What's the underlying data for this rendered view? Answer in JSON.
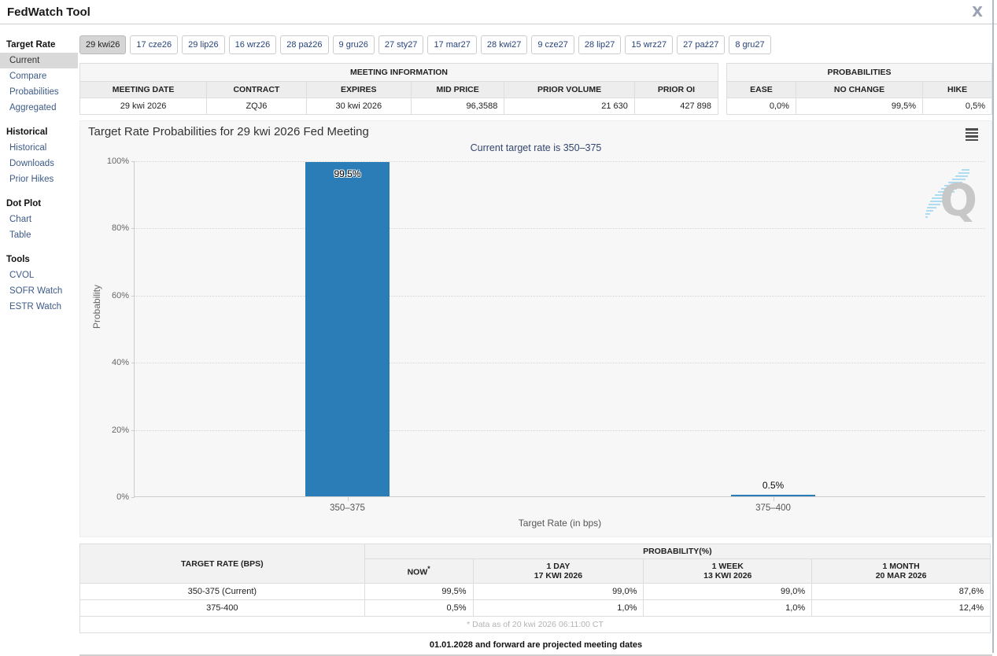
{
  "app": {
    "title": "FedWatch Tool",
    "close": "X"
  },
  "sidebar": {
    "sections": [
      {
        "header": "Target Rate",
        "items": [
          {
            "label": "Current",
            "selected": true
          },
          {
            "label": "Compare",
            "selected": false
          },
          {
            "label": "Probabilities",
            "selected": false
          },
          {
            "label": "Aggregated",
            "selected": false
          }
        ]
      },
      {
        "header": "Historical",
        "items": [
          {
            "label": "Historical",
            "selected": false
          },
          {
            "label": "Downloads",
            "selected": false
          },
          {
            "label": "Prior Hikes",
            "selected": false
          }
        ]
      },
      {
        "header": "Dot Plot",
        "items": [
          {
            "label": "Chart",
            "selected": false
          },
          {
            "label": "Table",
            "selected": false
          }
        ]
      },
      {
        "header": "Tools",
        "items": [
          {
            "label": "CVOL",
            "selected": false
          },
          {
            "label": "SOFR Watch",
            "selected": false
          },
          {
            "label": "ESTR Watch",
            "selected": false
          }
        ]
      }
    ]
  },
  "tabs": {
    "selected": "29 kwi26",
    "items": [
      "29 kwi26",
      "17 cze26",
      "29 lip26",
      "16 wrz26",
      "28 paź26",
      "9 gru26",
      "27 sty27",
      "17 mar27",
      "28 kwi27",
      "9 cze27",
      "28 lip27",
      "15 wrz27",
      "27 paź27",
      "8 gru27"
    ]
  },
  "meeting_information": {
    "title": "MEETING INFORMATION",
    "columns": [
      "MEETING DATE",
      "CONTRACT",
      "EXPIRES",
      "MID PRICE",
      "PRIOR VOLUME",
      "PRIOR OI"
    ],
    "values": [
      "29 kwi 2026",
      "ZQJ6",
      "30 kwi 2026",
      "96,3588",
      "21 630",
      "427 898"
    ]
  },
  "probabilities_panel": {
    "title": "PROBABILITIES",
    "columns": [
      "EASE",
      "NO CHANGE",
      "HIKE"
    ],
    "values": [
      "0,0%",
      "99,5%",
      "0,5%"
    ]
  },
  "chart_data": {
    "type": "bar",
    "title": "Target Rate Probabilities for 29 kwi 2026 Fed Meeting",
    "subtitle": "Current target rate is 350–375",
    "categories": [
      "350–375",
      "375–400"
    ],
    "values": [
      99.5,
      0.5
    ],
    "bar_labels": [
      "99.5%",
      "0.5%"
    ],
    "xlabel": "Target Rate (in bps)",
    "ylabel": "Probability",
    "ylim": [
      0,
      100
    ],
    "ytick_labels": [
      "0%",
      "20%",
      "40%",
      "60%",
      "80%",
      "100%"
    ],
    "grid": "dotted horizontal",
    "legend": "none",
    "bar_color": "#2b7db8"
  },
  "bottom_table": {
    "row_header": "TARGET RATE (BPS)",
    "group_header": "PROBABILITY(%)",
    "columns": [
      [
        "NOW *"
      ],
      [
        "1 DAY",
        "17 KWI 2026"
      ],
      [
        "1 WEEK",
        "13 KWI 2026"
      ],
      [
        "1 MONTH",
        "20 MAR 2026"
      ]
    ],
    "rows": [
      [
        "350-375 (Current)",
        "99,5%",
        "99,0%",
        "99,0%",
        "87,6%"
      ],
      [
        "375-400",
        "0,5%",
        "1,0%",
        "1,0%",
        "12,4%"
      ]
    ],
    "footnote": "* Data as of 20 kwi 2026 06:11:00 CT"
  },
  "notes": {
    "projected": "01.01.2028 and forward are projected meeting dates"
  }
}
